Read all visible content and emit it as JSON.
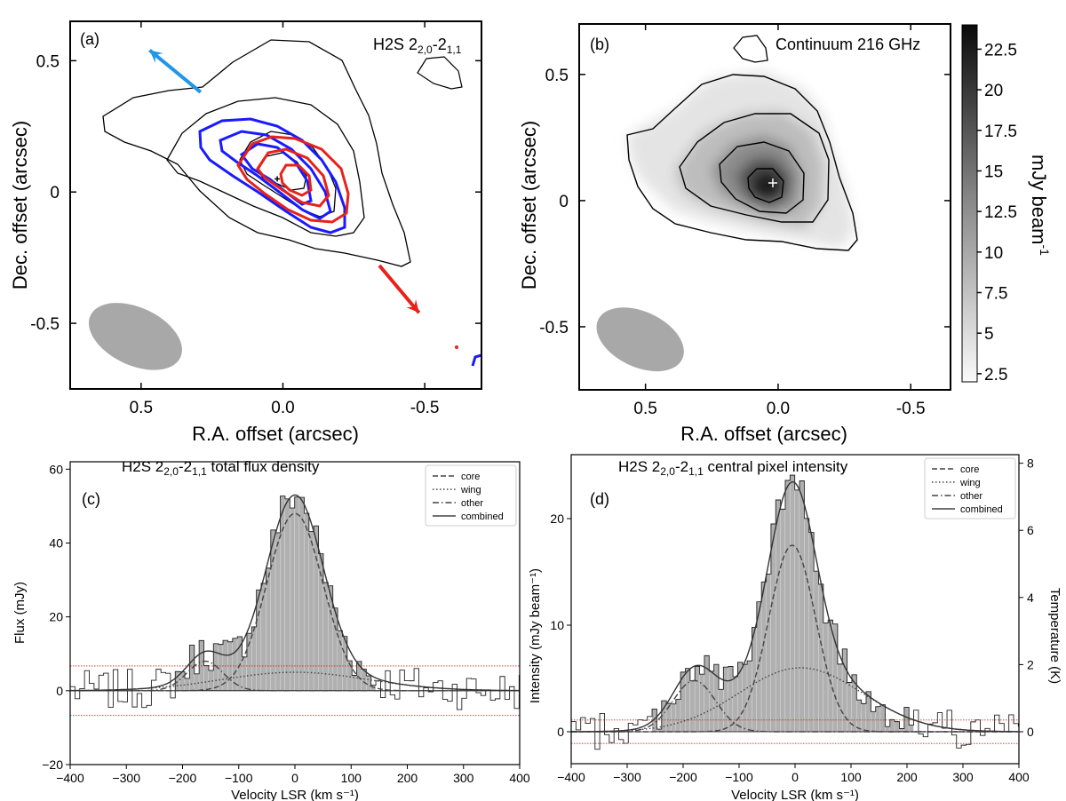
{
  "colors": {
    "blue_contour": "#1a1aff",
    "red_contour": "#e8211a",
    "blue_arrow": "#2196e8",
    "red_arrow": "#e8211a",
    "beam": "#a8a8a8",
    "hist": "#b0b0b0",
    "sigma_line": "#e02020"
  },
  "chart_data": [
    {
      "id": "a",
      "type": "contour",
      "panel_label": "(a)",
      "title": "H₂S 2₂,₀-2₁,₁",
      "title_parts": {
        "main": "H2S 2",
        "sub1": "2,0",
        "mid": "-2",
        "sub2": "1,1"
      },
      "xlabel": "R.A. offset (arcsec)",
      "ylabel": "Dec. offset (arcsec)",
      "xlim": [
        0.75,
        -0.7
      ],
      "ylim": [
        -0.75,
        0.65
      ],
      "xticks": [
        0.5,
        0.0,
        -0.5
      ],
      "xticklabels": [
        "0.5",
        "0.0",
        "-0.5"
      ],
      "yticks": [
        0.5,
        0,
        -0.5
      ],
      "yticklabels": [
        "0.5",
        "0",
        "-0.5"
      ],
      "center_marker": [
        0.02,
        0.05
      ],
      "beam": {
        "center": [
          0.52,
          -0.55
        ],
        "major_axis": 0.35,
        "minor_axis": 0.22,
        "pa_deg": 25
      },
      "outflow_arrows": [
        {
          "color": "blue",
          "from": [
            0.29,
            0.38
          ],
          "to": [
            0.47,
            0.54
          ]
        },
        {
          "color": "red",
          "from": [
            -0.34,
            -0.28
          ],
          "to": [
            -0.48,
            -0.46
          ]
        }
      ],
      "contour_levels": {
        "black": 4,
        "blue": 3,
        "red": 3
      }
    },
    {
      "id": "b",
      "type": "image+contour",
      "panel_label": "(b)",
      "title": "Continuum 216 GHz",
      "xlabel": "R.A. offset (arcsec)",
      "ylabel": "Dec. offset (arcsec)",
      "xlim": [
        0.75,
        -0.65
      ],
      "ylim": [
        -0.75,
        0.7
      ],
      "xticks": [
        0.5,
        0.0,
        -0.5
      ],
      "xticklabels": [
        "0.5",
        "0.0",
        "-0.5"
      ],
      "yticks": [
        0.5,
        0,
        -0.5
      ],
      "yticklabels": [
        "0.5",
        "0",
        "-0.5"
      ],
      "center_marker": [
        0.02,
        0.07
      ],
      "beam": {
        "center": [
          0.52,
          -0.55
        ],
        "major_axis": 0.35,
        "minor_axis": 0.22,
        "pa_deg": 25
      },
      "colorbar": {
        "label_main": "mJy beam",
        "label_sup": "-1",
        "range": [
          2.0,
          24.0
        ],
        "ticks": [
          "2.5",
          "5",
          "7.5",
          "10",
          "12.5",
          "15",
          "17.5",
          "20",
          "22.5"
        ]
      },
      "peak_mjy_beam": 24
    },
    {
      "id": "c",
      "type": "histogram+gaussian-fits",
      "panel_label": "(c)",
      "title": "H₂S 2₂,₀-2₁,₁ total flux density",
      "title_parts": {
        "main": "H2S 2",
        "sub1": "2,0",
        "mid": "-2",
        "sub2": "1,1",
        "rest": " total flux density"
      },
      "xlabel": "Velocity LSR (km s⁻¹)",
      "ylabel": "Flux (mJy)",
      "xlim": [
        -400,
        400
      ],
      "ylim": [
        -20,
        62
      ],
      "xticks": [
        -400,
        -300,
        -200,
        -100,
        0,
        100,
        200,
        300,
        400
      ],
      "xticklabels": [
        "−400",
        "−300",
        "−200",
        "−100",
        "0",
        "100",
        "200",
        "300",
        "400"
      ],
      "yticks": [
        -20,
        0,
        20,
        40,
        60
      ],
      "yticklabels": [
        "−20",
        "0",
        "20",
        "40",
        "60"
      ],
      "sigma_lines": [
        6.7,
        -6.7
      ],
      "series": [
        {
          "name": "core",
          "style": "dashed",
          "amp": 48,
          "center": 0,
          "sigma": 50
        },
        {
          "name": "wing",
          "style": "dotted",
          "amp": 5,
          "center": 0,
          "sigma": 130
        },
        {
          "name": "other",
          "style": "dashdot",
          "amp": 8,
          "center": -160,
          "sigma": 32
        },
        {
          "name": "combined",
          "style": "solid"
        }
      ],
      "legend": [
        "core",
        "wing",
        "other",
        "combined"
      ],
      "legend_loc": "top-right"
    },
    {
      "id": "d",
      "type": "histogram+gaussian-fits",
      "panel_label": "(d)",
      "title": "H₂S 2₂,₀-2₁,₁ central pixel intensity",
      "title_parts": {
        "main": "H2S 2",
        "sub1": "2,0",
        "mid": "-2",
        "sub2": "1,1",
        "rest": " central pixel intensity"
      },
      "xlabel": "Velocity LSR (km s⁻¹)",
      "ylabel": "Intensity (mJy beam⁻¹)",
      "y2label": "Temperature (K)",
      "xlim": [
        -400,
        400
      ],
      "ylim": [
        -3,
        26
      ],
      "xticks": [
        -400,
        -300,
        -200,
        -100,
        0,
        100,
        200,
        300,
        400
      ],
      "xticklabels": [
        "−400",
        "−300",
        "−200",
        "−100",
        "0",
        "100",
        "200",
        "300",
        "400"
      ],
      "yticks": [
        0,
        10,
        20
      ],
      "yticklabels": [
        "0",
        "10",
        "20"
      ],
      "y2ticks": [
        0,
        2,
        4,
        6,
        8
      ],
      "y2ticklabels": [
        "0",
        "2",
        "4",
        "6",
        "8"
      ],
      "y2_per_y": 0.3175,
      "sigma_lines": [
        1.1,
        -1.1
      ],
      "series": [
        {
          "name": "core",
          "style": "dashed",
          "amp": 17.5,
          "center": -5,
          "sigma": 42
        },
        {
          "name": "wing",
          "style": "dotted",
          "amp": 6,
          "center": 10,
          "sigma": 110
        },
        {
          "name": "other",
          "style": "dashdot",
          "amp": 4.8,
          "center": -180,
          "sigma": 38
        },
        {
          "name": "combined",
          "style": "solid"
        }
      ],
      "legend": [
        "core",
        "wing",
        "other",
        "combined"
      ],
      "legend_loc": "top-right"
    }
  ]
}
